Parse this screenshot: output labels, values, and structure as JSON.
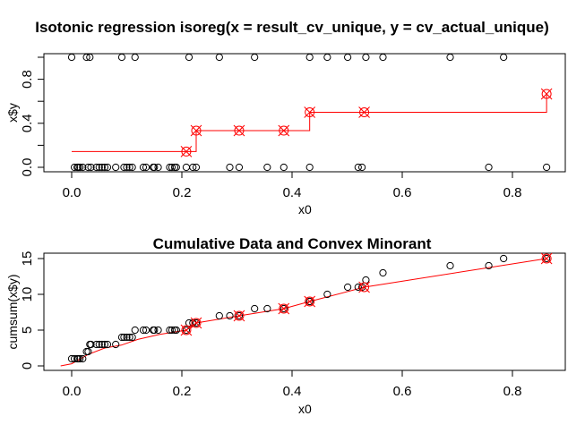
{
  "chart_data": [
    {
      "type": "scatter",
      "title": "Isotonic regression isoreg(x = result_cv_unique, y = cv_actual_unique)",
      "xlabel": "x0",
      "ylabel": "x$y",
      "xlim": [
        -0.05,
        0.9
      ],
      "ylim": [
        0,
        1
      ],
      "xticks": [
        "0.0",
        "0.2",
        "0.4",
        "0.6",
        "0.8"
      ],
      "yticks": [
        "0.0",
        "0.4",
        "0.8"
      ],
      "points_x": [
        0.0,
        0.005,
        0.01,
        0.012,
        0.015,
        0.02,
        0.027,
        0.03,
        0.033,
        0.035,
        0.045,
        0.05,
        0.055,
        0.06,
        0.065,
        0.08,
        0.091,
        0.095,
        0.1,
        0.105,
        0.11,
        0.115,
        0.13,
        0.135,
        0.148,
        0.15,
        0.157,
        0.178,
        0.182,
        0.187,
        0.19,
        0.208,
        0.213,
        0.22,
        0.226,
        0.268,
        0.287,
        0.304,
        0.332,
        0.355,
        0.385,
        0.432,
        0.432,
        0.464,
        0.501,
        0.52,
        0.527,
        0.534,
        0.565,
        0.687,
        0.757,
        0.784,
        0.862
      ],
      "points_y": [
        1,
        0,
        0,
        0,
        0,
        0,
        1,
        0,
        1,
        0,
        0,
        0,
        0,
        0,
        0,
        0,
        1,
        0,
        0,
        0,
        0,
        1,
        0,
        0,
        0,
        0,
        0,
        0,
        0,
        0,
        0,
        0,
        1,
        0,
        0,
        1,
        0,
        0,
        1,
        0,
        0,
        1,
        0,
        1,
        1,
        0,
        0,
        1,
        1,
        1,
        0,
        1,
        0
      ],
      "fitted": {
        "x": [
          0.0,
          0.208,
          0.226,
          0.304,
          0.385,
          0.432,
          0.531,
          0.862
        ],
        "y": [
          0.143,
          0.143,
          0.333,
          0.333,
          0.333,
          0.5,
          0.5,
          0.667
        ],
        "marked": [
          false,
          true,
          true,
          true,
          true,
          true,
          true,
          true
        ]
      },
      "colors": {
        "points": "#000000",
        "fit": "#ff0000"
      }
    },
    {
      "type": "scatter",
      "title": "Cumulative Data and Convex Minorant",
      "xlabel": "x0",
      "ylabel": "cumsum(x$y)",
      "xlim": [
        -0.05,
        0.9
      ],
      "ylim": [
        0,
        15
      ],
      "xticks": [
        "0.0",
        "0.2",
        "0.4",
        "0.6",
        "0.8"
      ],
      "yticks": [
        "0",
        "5",
        "10",
        "15"
      ],
      "cumsum": [
        1,
        1,
        1,
        1,
        1,
        1,
        2,
        2,
        3,
        3,
        3,
        3,
        3,
        3,
        3,
        3,
        4,
        4,
        4,
        4,
        4,
        5,
        5,
        5,
        5,
        5,
        5,
        5,
        5,
        5,
        5,
        5,
        6,
        6,
        6,
        7,
        7,
        7,
        8,
        8,
        8,
        9,
        9,
        10,
        11,
        11,
        11,
        12,
        13,
        14,
        14,
        15,
        15
      ],
      "minorant": {
        "x": [
          -0.02,
          0.0,
          0.03,
          0.06,
          0.09,
          0.12,
          0.16,
          0.208,
          0.226,
          0.304,
          0.385,
          0.432,
          0.531,
          0.862
        ],
        "y": [
          0,
          0.3,
          1.6,
          2.5,
          2.9,
          3.7,
          4.4,
          5,
          6,
          7,
          8,
          9,
          11,
          15
        ]
      },
      "marked_x": [
        0.208,
        0.226,
        0.304,
        0.385,
        0.432,
        0.531,
        0.862
      ],
      "marked_y": [
        5,
        6,
        7,
        8,
        9,
        11,
        15
      ],
      "colors": {
        "points": "#000000",
        "fit": "#ff0000"
      }
    }
  ]
}
